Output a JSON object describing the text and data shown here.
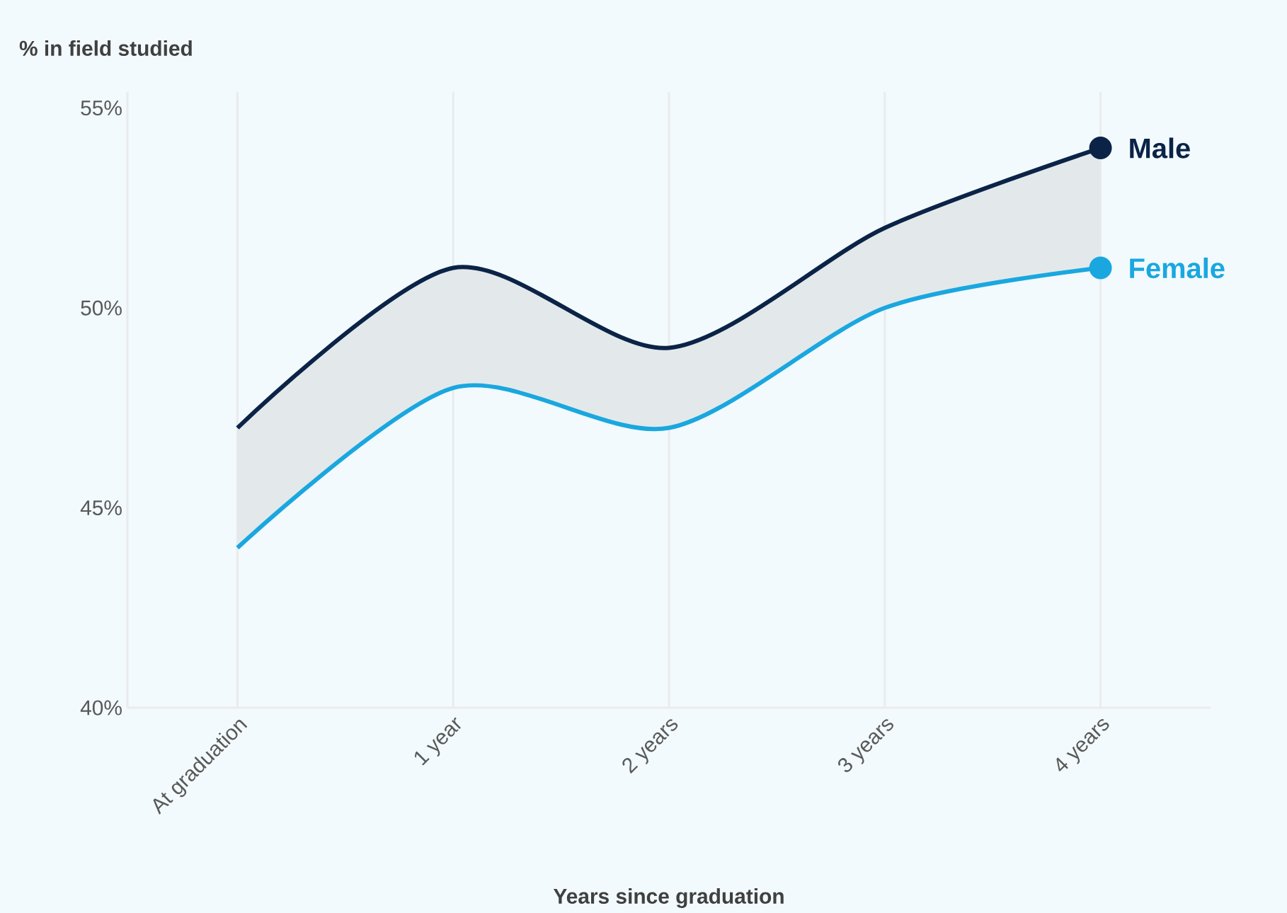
{
  "chart_data": {
    "type": "line",
    "xlabel": "Years since graduation",
    "ylabel": "% in field studied",
    "categories": [
      "At graduation",
      "1 year",
      "2 years",
      "3 years",
      "4 years"
    ],
    "series": [
      {
        "name": "Male",
        "color": "#0b2347",
        "values": [
          47,
          51,
          49,
          52,
          54
        ],
        "lower": [
          44,
          48,
          47,
          50,
          51
        ],
        "upper": [
          47,
          51,
          49,
          52,
          54
        ]
      },
      {
        "name": "Female",
        "color": "#1aa7e0",
        "values": [
          44,
          48,
          47,
          50,
          51
        ]
      }
    ],
    "ylim": [
      40,
      55.4
    ],
    "yticks": [
      {
        "value": 40,
        "label": "40%"
      },
      {
        "value": 45,
        "label": "45%"
      },
      {
        "value": 50,
        "label": "50%"
      },
      {
        "value": 55,
        "label": "55%"
      }
    ],
    "grid": "x"
  }
}
